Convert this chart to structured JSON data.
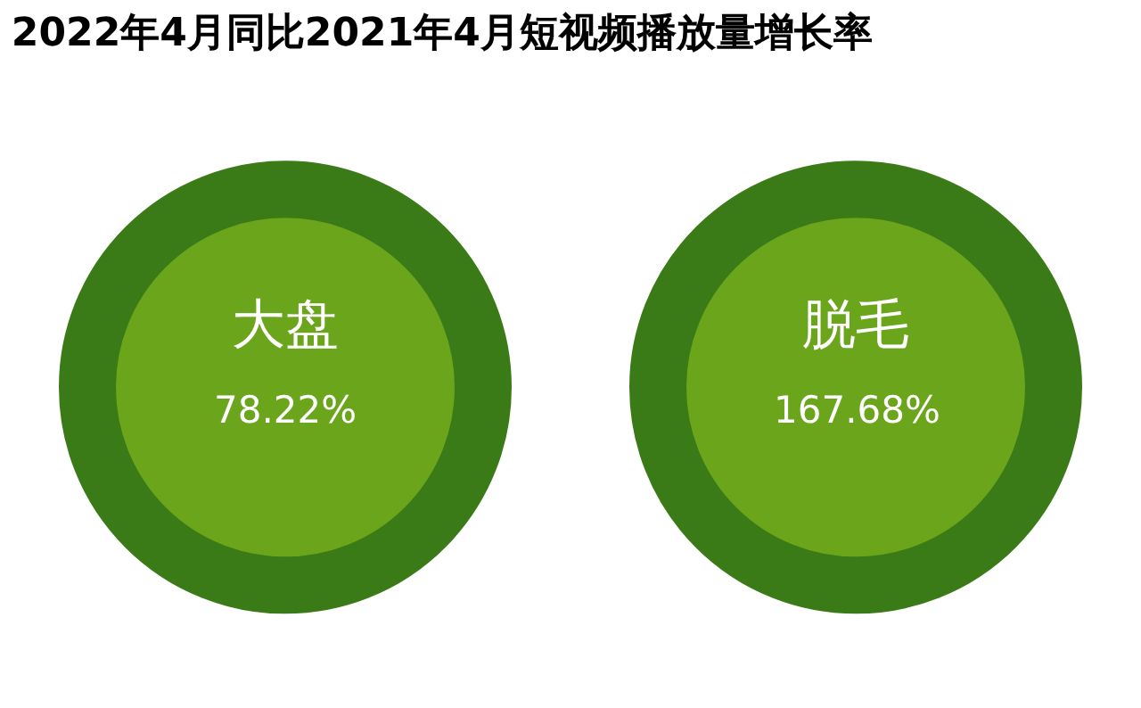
{
  "chart_data": {
    "type": "other",
    "title": "2022年4月同比2021年4月短视频播放量增长率",
    "categories": [
      "大盘",
      "脱毛"
    ],
    "values": [
      78.22,
      167.68
    ],
    "value_labels": [
      "78.22%",
      "167.68%"
    ],
    "color": "#6aa51c",
    "legend": false
  }
}
